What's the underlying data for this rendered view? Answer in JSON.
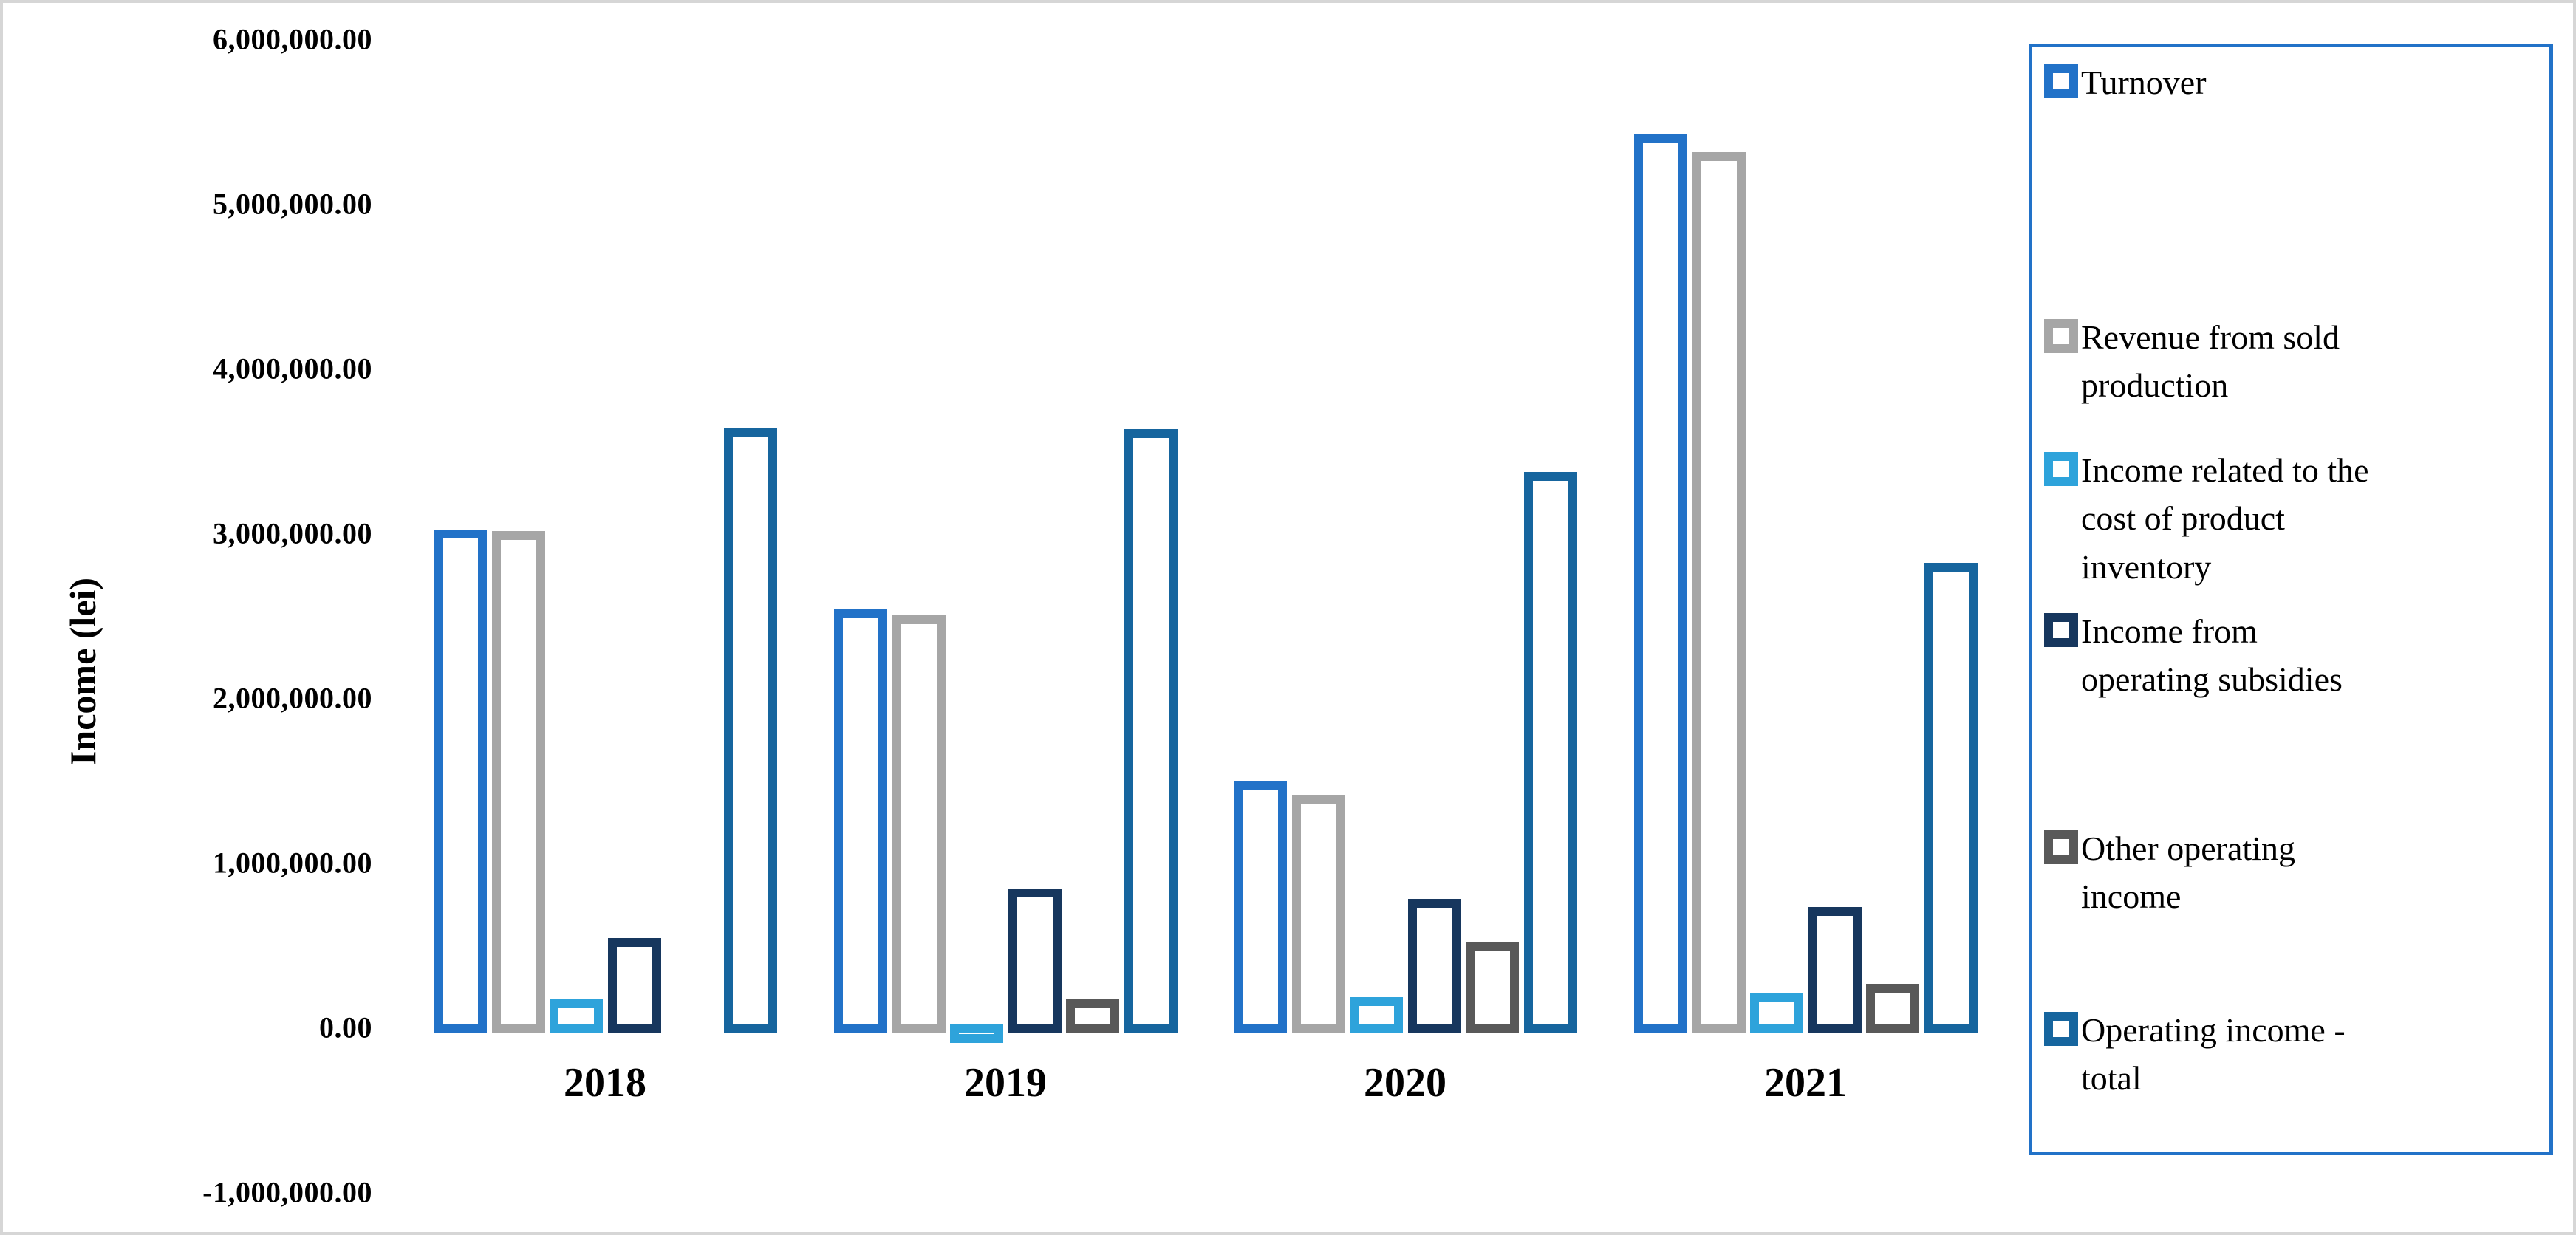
{
  "chart_data": {
    "type": "bar",
    "title": "",
    "ylabel": "Income (lei)",
    "xlabel": "",
    "grid": false,
    "legend_position": "right",
    "ylim": [
      -1000000,
      6000000
    ],
    "y_tick_step": 1000000,
    "y_ticks": [
      {
        "label": "6,000,000.00",
        "value": 6000000
      },
      {
        "label": "5,000,000.00",
        "value": 5000000
      },
      {
        "label": "4,000,000.00",
        "value": 4000000
      },
      {
        "label": "3,000,000.00",
        "value": 3000000
      },
      {
        "label": "2,000,000.00",
        "value": 2000000
      },
      {
        "label": "1,000,000.00",
        "value": 1000000
      },
      {
        "label": "0.00",
        "value": 0
      },
      {
        "label": "-1,000,000.00",
        "value": -1000000
      }
    ],
    "categories": [
      "2018",
      "2019",
      "2020",
      "2021"
    ],
    "series": [
      {
        "name": "Turnover",
        "legend_label": "Turnover",
        "color": "#2272c8",
        "values": [
          3000000,
          2520000,
          1470000,
          5400000
        ]
      },
      {
        "name": "Revenue from sold production",
        "legend_label": "Revenue from sold\nproduction",
        "color": "#a6a6a6",
        "values": [
          2990000,
          2480000,
          1390000,
          5290000
        ]
      },
      {
        "name": "Income related to the cost of product inventory",
        "legend_label": "Income related to the\ncost of product\ninventory",
        "color": "#2ea3db",
        "values": [
          150000,
          -50000,
          160000,
          190000
        ]
      },
      {
        "name": "Income from operating subsidies",
        "legend_label": "Income from\noperating subsidies",
        "color": "#17375e",
        "values": [
          520000,
          820000,
          760000,
          710000
        ]
      },
      {
        "name": "Other operating income",
        "legend_label": "Other operating\nincome",
        "color": "#595959",
        "values": [
          0,
          150000,
          500000,
          240000
        ]
      },
      {
        "name": "Operating income - total",
        "legend_label": "Operating income -\ntotal",
        "color": "#16659e",
        "values": [
          3620000,
          3610000,
          3350000,
          2800000
        ]
      }
    ]
  }
}
